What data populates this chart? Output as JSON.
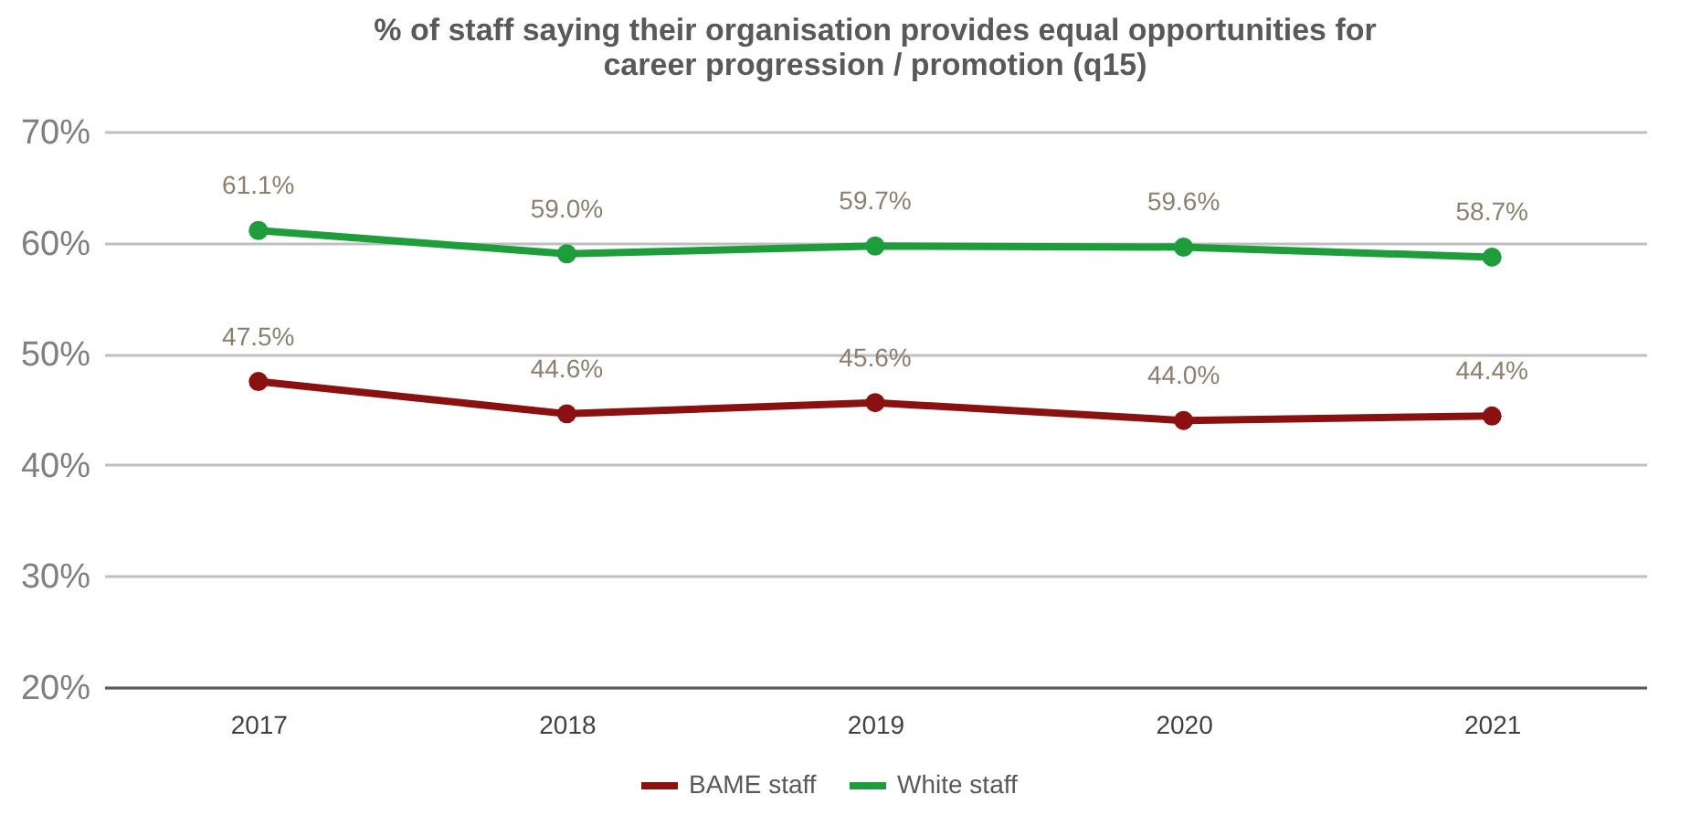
{
  "chart_data": {
    "type": "line",
    "title": "% of staff saying their organisation provides equal opportunities for career progression / promotion (q15)",
    "categories": [
      "2017",
      "2018",
      "2019",
      "2020",
      "2021"
    ],
    "series": [
      {
        "name": "BAME staff",
        "color": "#8b1010",
        "values": [
          47.5,
          44.6,
          45.6,
          44.0,
          44.4
        ],
        "value_labels": [
          "47.5%",
          "44.6%",
          "45.6%",
          "44.0%",
          "44.4%"
        ]
      },
      {
        "name": "White staff",
        "color": "#1e9e3a",
        "values": [
          61.1,
          59.0,
          59.7,
          59.6,
          58.7
        ],
        "value_labels": [
          "61.1%",
          "59.0%",
          "59.7%",
          "59.6%",
          "58.7%"
        ]
      }
    ],
    "ylim": [
      20,
      70
    ],
    "yticks": [
      {
        "value": 20,
        "label": "20%"
      },
      {
        "value": 30,
        "label": "30%"
      },
      {
        "value": 40,
        "label": "40%"
      },
      {
        "value": 50,
        "label": "50%"
      },
      {
        "value": 60,
        "label": "60%"
      },
      {
        "value": 70,
        "label": "70%"
      }
    ],
    "grid": "y",
    "legend": "bottom",
    "marker": "circle",
    "line_style": "solid"
  }
}
